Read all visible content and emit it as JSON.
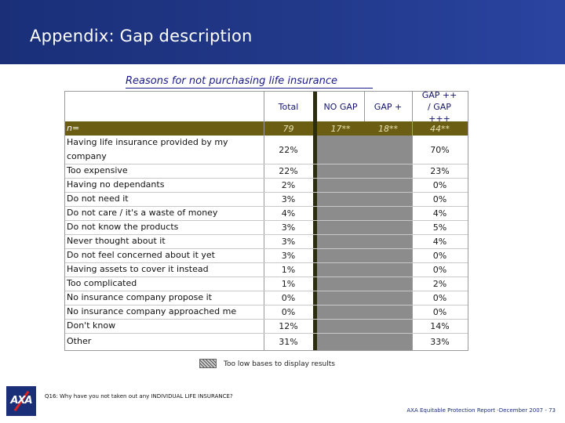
{
  "slide": {
    "title": "Appendix: Gap description",
    "subtitle": "Reasons for not purchasing life insurance"
  },
  "table": {
    "columns": [
      "Total",
      "NO GAP",
      "GAP +",
      "GAP ++ / GAP +++"
    ],
    "n_row": {
      "label": "n=",
      "total": "79",
      "no_gap": "17**",
      "gap_plus": "18**",
      "gap_more": "44**"
    },
    "rows": [
      {
        "label": "Having life insurance provided by my company",
        "total": "22%",
        "gap_more": "70%"
      },
      {
        "label": "Too expensive",
        "total": "22%",
        "gap_more": "23%"
      },
      {
        "label": "Having no dependants",
        "total": "2%",
        "gap_more": "0%"
      },
      {
        "label": "Do not need it",
        "total": "3%",
        "gap_more": "0%"
      },
      {
        "label": "Do not care / it's a waste of money",
        "total": "4%",
        "gap_more": "4%"
      },
      {
        "label": "Do not know the products",
        "total": "3%",
        "gap_more": "5%"
      },
      {
        "label": "Never thought about it",
        "total": "3%",
        "gap_more": "4%"
      },
      {
        "label": "Do not feel concerned about it yet",
        "total": "3%",
        "gap_more": "0%"
      },
      {
        "label": "Having assets to cover it instead",
        "total": "1%",
        "gap_more": "0%"
      },
      {
        "label": "Too complicated",
        "total": "1%",
        "gap_more": "2%"
      },
      {
        "label": "No insurance company propose it",
        "total": "0%",
        "gap_more": "0%"
      },
      {
        "label": "No insurance company approached me",
        "total": "0%",
        "gap_more": "0%"
      },
      {
        "label": "Don't know",
        "total": "12%",
        "gap_more": "14%"
      },
      {
        "label": "Other",
        "total": "31%",
        "gap_more": "33%"
      }
    ]
  },
  "legend": {
    "text": "Too low bases to display results"
  },
  "footnote": "Q16: Why have you not taken out any INDIVIDUAL LIFE INSURANCE?",
  "footer": "AXA Equitable Protection Report -December 2007 - 73",
  "logo": {
    "text": "AXA"
  },
  "colors": {
    "header": "#1a2f78",
    "n_row": "#6b5e12",
    "grey_column": "#8c8c8c",
    "subtitle": "#1a1a8a"
  }
}
